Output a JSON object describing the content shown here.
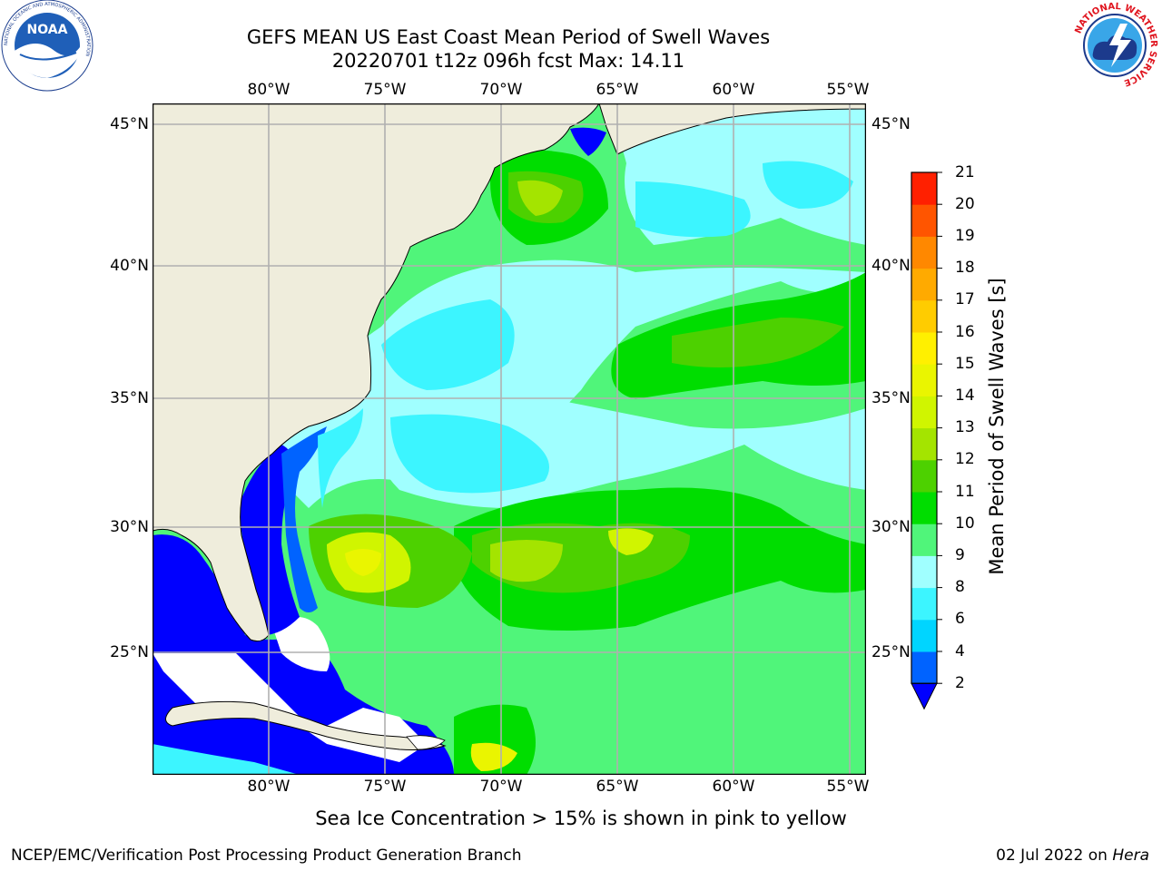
{
  "title": {
    "line1": "GEFS MEAN US East Coast Mean Period of Swell Waves",
    "line2": "20220701 t12z 096h fcst   Max: 14.11"
  },
  "map": {
    "longitude_labels": [
      "80°W",
      "75°W",
      "70°W",
      "65°W",
      "60°W",
      "55°W"
    ],
    "latitude_labels": [
      "45°N",
      "40°N",
      "35°N",
      "30°N",
      "25°N"
    ],
    "colors": {
      "land": "#efeddc",
      "no_data": "#ffffff",
      "grid": "#b0b0b0",
      "coast": "#000000"
    }
  },
  "colorbar": {
    "title": "Mean Period of Swell Waves [s]",
    "levels": [
      "2",
      "4",
      "6",
      "8",
      "9",
      "10",
      "11",
      "12",
      "13",
      "14",
      "15",
      "16",
      "17",
      "18",
      "19",
      "20",
      "21"
    ],
    "colors": [
      "#0063ff",
      "#00d5ff",
      "#3cf5ff",
      "#a0ffff",
      "#50f57a",
      "#00dd00",
      "#4dd100",
      "#a4e400",
      "#d0f500",
      "#eaf500",
      "#fff000",
      "#ffcc00",
      "#ffaa00",
      "#ff8800",
      "#ff5500",
      "#ff2000"
    ],
    "under_color": "#0000ff"
  },
  "footnote": "Sea Ice Concentration > 15% is shown in pink to yellow",
  "credit": "NCEP/EMC/Verification Post Processing Product Generation Branch",
  "date": {
    "text": "02 Jul 2022 on ",
    "machine": "Hera"
  },
  "logos": {
    "left": "noaa-logo",
    "right": "national-weather-service-logo",
    "noaa_text": "NOAA",
    "noaa_ring_text": "NATIONAL OCEANIC AND ATMOSPHERIC ADMINISTRATION",
    "nws_ring_text": "NATIONAL WEATHER SERVICE"
  }
}
